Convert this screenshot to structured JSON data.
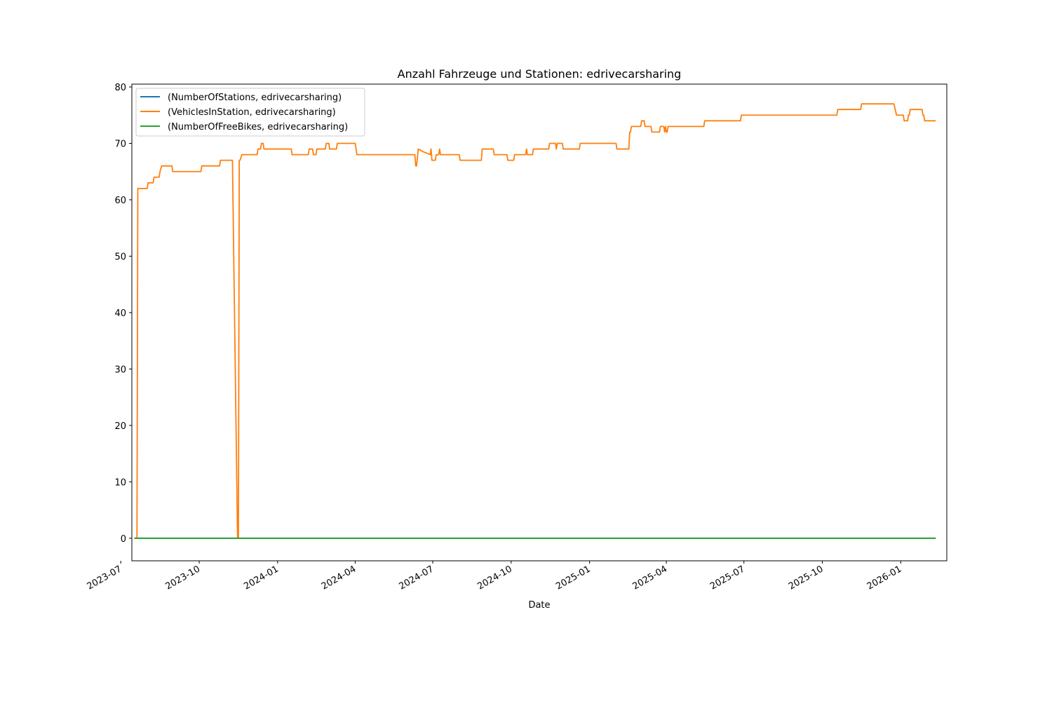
{
  "chart_data": {
    "type": "line",
    "title": "Anzahl Fahrzeuge und Stationen: edrivecarsharing",
    "xlabel": "Date",
    "ylabel": "",
    "x_axis_type": "date",
    "xlim": [
      "2023-07-14",
      "2026-02-24"
    ],
    "ylim": [
      -4,
      80.5
    ],
    "x_ticks": [
      "2023-07",
      "2023-10",
      "2024-01",
      "2024-04",
      "2024-07",
      "2024-10",
      "2025-01",
      "2025-04",
      "2025-07",
      "2025-10",
      "2026-01"
    ],
    "y_ticks": [
      0,
      10,
      20,
      30,
      40,
      50,
      60,
      70,
      80
    ],
    "grid": false,
    "legend_position": "top-left",
    "series": [
      {
        "name": "(NumberOfStations, edrivecarsharing)",
        "color": "#1f77b4",
        "points": [
          [
            "2023-07-17",
            0
          ],
          [
            "2026-02-11",
            0
          ]
        ]
      },
      {
        "name": "(VehiclesInStation, edrivecarsharing)",
        "color": "#ff7f0e",
        "points": [
          [
            "2023-07-17",
            0
          ],
          [
            "2023-07-20",
            0
          ],
          [
            "2023-07-21",
            62
          ],
          [
            "2023-08-01",
            62
          ],
          [
            "2023-08-02",
            63
          ],
          [
            "2023-08-08",
            63
          ],
          [
            "2023-08-09",
            64
          ],
          [
            "2023-08-15",
            64
          ],
          [
            "2023-08-16",
            65
          ],
          [
            "2023-08-18",
            66
          ],
          [
            "2023-08-30",
            66
          ],
          [
            "2023-08-31",
            65
          ],
          [
            "2023-10-03",
            65
          ],
          [
            "2023-10-04",
            66
          ],
          [
            "2023-10-25",
            66
          ],
          [
            "2023-10-26",
            67
          ],
          [
            "2023-11-09",
            67
          ],
          [
            "2023-11-15",
            0
          ],
          [
            "2023-11-16",
            0
          ],
          [
            "2023-11-17",
            67
          ],
          [
            "2023-11-18",
            67
          ],
          [
            "2023-11-20",
            68
          ],
          [
            "2023-12-08",
            68
          ],
          [
            "2023-12-09",
            69
          ],
          [
            "2023-12-12",
            69
          ],
          [
            "2023-12-13",
            70
          ],
          [
            "2023-12-15",
            70
          ],
          [
            "2023-12-16",
            69
          ],
          [
            "2024-01-17",
            69
          ],
          [
            "2024-01-18",
            68
          ],
          [
            "2024-02-06",
            68
          ],
          [
            "2024-02-07",
            69
          ],
          [
            "2024-02-11",
            69
          ],
          [
            "2024-02-12",
            68
          ],
          [
            "2024-02-15",
            68
          ],
          [
            "2024-02-16",
            69
          ],
          [
            "2024-02-26",
            69
          ],
          [
            "2024-02-27",
            70
          ],
          [
            "2024-03-01",
            70
          ],
          [
            "2024-03-02",
            69
          ],
          [
            "2024-03-10",
            69
          ],
          [
            "2024-03-11",
            70
          ],
          [
            "2024-04-01",
            70
          ],
          [
            "2024-04-02",
            69
          ],
          [
            "2024-04-03",
            68
          ],
          [
            "2024-06-10",
            68
          ],
          [
            "2024-06-11",
            66
          ],
          [
            "2024-06-12",
            66
          ],
          [
            "2024-06-14",
            69
          ],
          [
            "2024-06-20",
            68.5
          ],
          [
            "2024-06-28",
            68
          ],
          [
            "2024-06-29",
            69
          ],
          [
            "2024-06-30",
            67
          ],
          [
            "2024-07-04",
            67
          ],
          [
            "2024-07-05",
            68
          ],
          [
            "2024-07-08",
            68
          ],
          [
            "2024-07-09",
            69
          ],
          [
            "2024-07-10",
            68
          ],
          [
            "2024-08-01",
            68
          ],
          [
            "2024-08-02",
            67
          ],
          [
            "2024-08-27",
            67
          ],
          [
            "2024-08-28",
            69
          ],
          [
            "2024-09-10",
            69
          ],
          [
            "2024-09-11",
            68
          ],
          [
            "2024-09-26",
            68
          ],
          [
            "2024-09-27",
            67
          ],
          [
            "2024-10-04",
            67
          ],
          [
            "2024-10-05",
            68
          ],
          [
            "2024-10-18",
            68
          ],
          [
            "2024-10-19",
            69
          ],
          [
            "2024-10-20",
            68
          ],
          [
            "2024-10-26",
            68
          ],
          [
            "2024-10-27",
            69
          ],
          [
            "2024-11-14",
            69
          ],
          [
            "2024-11-15",
            70
          ],
          [
            "2024-11-22",
            70
          ],
          [
            "2024-11-23",
            69
          ],
          [
            "2024-11-24",
            70
          ],
          [
            "2024-11-30",
            70
          ],
          [
            "2024-12-01",
            69
          ],
          [
            "2024-12-20",
            69
          ],
          [
            "2024-12-21",
            70
          ],
          [
            "2025-02-01",
            70
          ],
          [
            "2025-02-02",
            69
          ],
          [
            "2025-02-16",
            69
          ],
          [
            "2025-02-17",
            72
          ],
          [
            "2025-02-18",
            72
          ],
          [
            "2025-02-19",
            73
          ],
          [
            "2025-03-02",
            73
          ],
          [
            "2025-03-03",
            74
          ],
          [
            "2025-03-06",
            74
          ],
          [
            "2025-03-07",
            73
          ],
          [
            "2025-03-14",
            73
          ],
          [
            "2025-03-15",
            72
          ],
          [
            "2025-03-24",
            72
          ],
          [
            "2025-03-25",
            73
          ],
          [
            "2025-03-29",
            73
          ],
          [
            "2025-03-30",
            72
          ],
          [
            "2025-03-31",
            73
          ],
          [
            "2025-04-01",
            72
          ],
          [
            "2025-04-02",
            72
          ],
          [
            "2025-04-03",
            73
          ],
          [
            "2025-05-15",
            73
          ],
          [
            "2025-05-16",
            74
          ],
          [
            "2025-06-27",
            74
          ],
          [
            "2025-06-28",
            75
          ],
          [
            "2025-10-18",
            75
          ],
          [
            "2025-10-19",
            76
          ],
          [
            "2025-11-15",
            76
          ],
          [
            "2025-11-16",
            77
          ],
          [
            "2025-12-24",
            77
          ],
          [
            "2025-12-27",
            75
          ],
          [
            "2026-01-04",
            75
          ],
          [
            "2026-01-05",
            74
          ],
          [
            "2026-01-09",
            74
          ],
          [
            "2026-01-10",
            75
          ],
          [
            "2026-01-11",
            75
          ],
          [
            "2026-01-12",
            76
          ],
          [
            "2026-01-26",
            76
          ],
          [
            "2026-01-27",
            75
          ],
          [
            "2026-01-28",
            75
          ],
          [
            "2026-01-29",
            74
          ],
          [
            "2026-02-11",
            74
          ]
        ]
      },
      {
        "name": "(NumberOfFreeBikes, edrivecarsharing)",
        "color": "#2ca02c",
        "points": [
          [
            "2023-07-17",
            0
          ],
          [
            "2026-02-11",
            0
          ]
        ]
      }
    ]
  }
}
